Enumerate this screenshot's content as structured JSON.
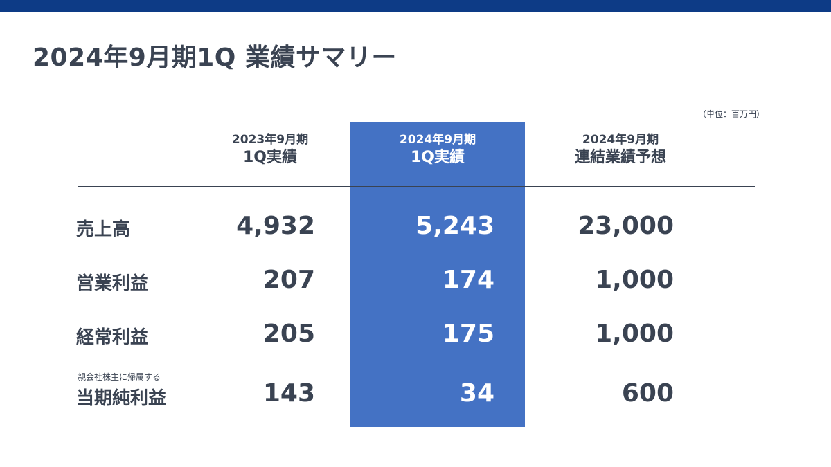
{
  "header": {
    "title": "2024年9月期1Q  業績サマリー",
    "unit_note": "（単位：百万円）"
  },
  "columns": {
    "prev": {
      "period": "2023年9月期",
      "kind": "1Q実績"
    },
    "curr": {
      "period": "2024年9月期",
      "kind": "1Q実績"
    },
    "fcst": {
      "period": "2024年9月期",
      "kind": "連結業績予想"
    }
  },
  "rows": [
    {
      "label": "売上高",
      "note": "",
      "prev": "4,932",
      "curr": "5,243",
      "fcst": "23,000"
    },
    {
      "label": "営業利益",
      "note": "",
      "prev": "207",
      "curr": "174",
      "fcst": "1,000"
    },
    {
      "label": "経常利益",
      "note": "",
      "prev": "205",
      "curr": "175",
      "fcst": "1,000"
    },
    {
      "label": "当期純利益",
      "note": "親会社株主に帰属する",
      "prev": "143",
      "curr": "34",
      "fcst": "600"
    }
  ],
  "colors": {
    "top_bar": "#0d3b86",
    "highlight_column": "#4472c4",
    "text": "#3a4352"
  }
}
